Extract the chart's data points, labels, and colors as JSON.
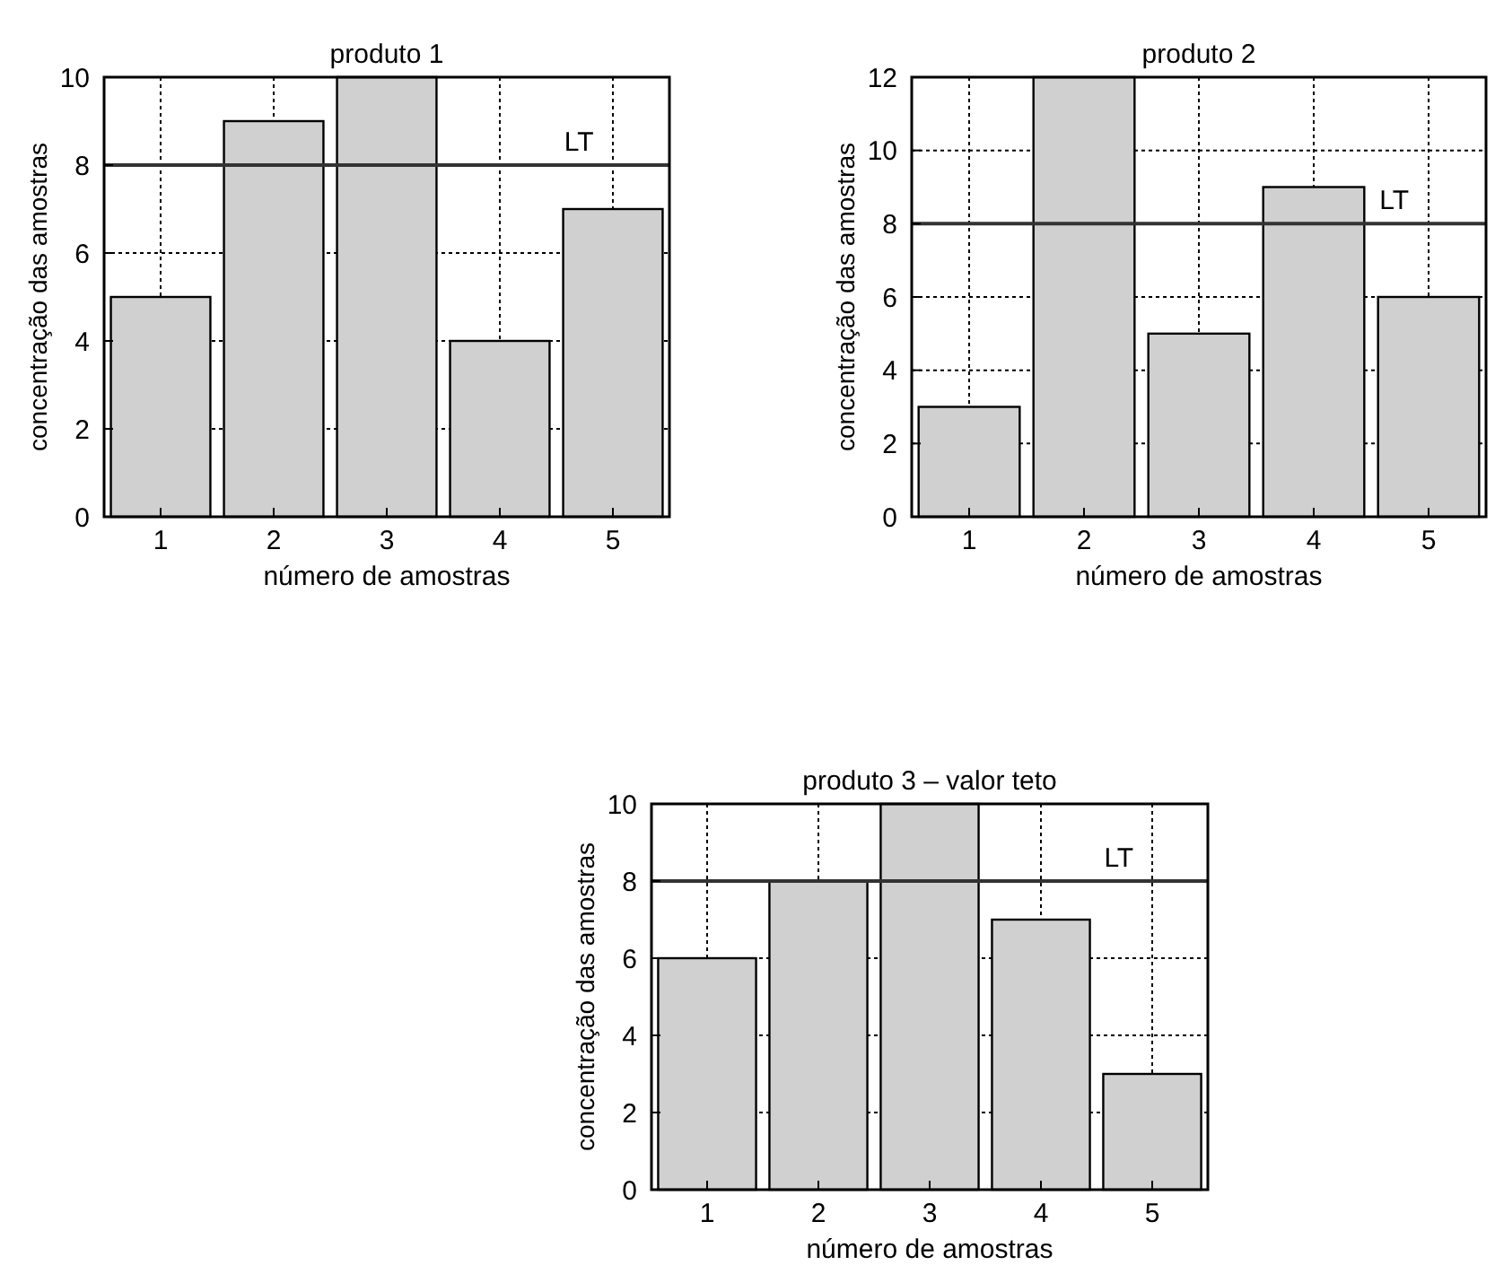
{
  "chart_data": [
    {
      "type": "bar",
      "title": "produto 1",
      "xlabel": "número de amostras",
      "ylabel": "concentração das amostras",
      "categories": [
        "1",
        "2",
        "3",
        "4",
        "5"
      ],
      "values": [
        5,
        9,
        10,
        4,
        7
      ],
      "color": "#d0d0d0",
      "ylim": [
        0,
        10
      ],
      "yticks": [
        0,
        2,
        4,
        6,
        8,
        10
      ],
      "grid": true,
      "ref_lines": [
        {
          "axis": "y",
          "value": 8,
          "label": "LT",
          "color": "#333333"
        }
      ]
    },
    {
      "type": "bar",
      "title": "produto 2",
      "xlabel": "número de amostras",
      "ylabel": "concentração das amostras",
      "categories": [
        "1",
        "2",
        "3",
        "4",
        "5"
      ],
      "values": [
        3,
        12,
        5,
        9,
        6
      ],
      "color": "#d0d0d0",
      "ylim": [
        0,
        12
      ],
      "yticks": [
        0,
        2,
        4,
        6,
        8,
        10,
        12
      ],
      "grid": true,
      "ref_lines": [
        {
          "axis": "y",
          "value": 8,
          "label": "LT",
          "color": "#333333"
        }
      ]
    },
    {
      "type": "bar",
      "title": "produto 3 – valor teto",
      "xlabel": "número de amostras",
      "ylabel": "concentração das amostras",
      "categories": [
        "1",
        "2",
        "3",
        "4",
        "5"
      ],
      "values": [
        6,
        8,
        10,
        7,
        3
      ],
      "color": "#d0d0d0",
      "ylim": [
        0,
        10
      ],
      "yticks": [
        0,
        2,
        4,
        6,
        8,
        10
      ],
      "grid": true,
      "ref_lines": [
        {
          "axis": "y",
          "value": 8,
          "label": "LT",
          "color": "#333333"
        }
      ]
    }
  ]
}
